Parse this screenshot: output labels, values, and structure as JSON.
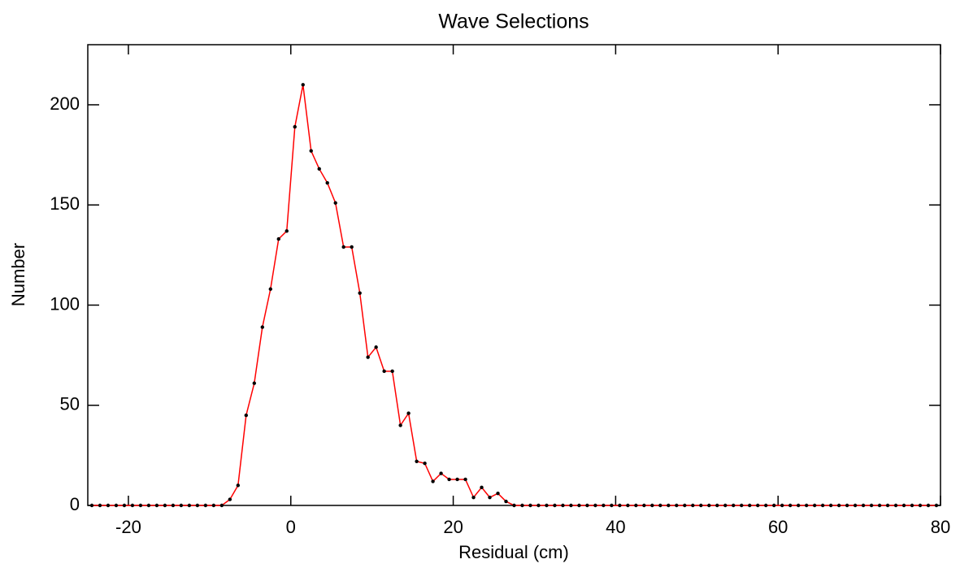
{
  "chart_data": {
    "type": "line",
    "title": "Wave Selections",
    "x_label": "Residual (cm)",
    "y_label": "Number",
    "x": [
      -24.5,
      -23.5,
      -22.5,
      -21.5,
      -20.5,
      -19.5,
      -18.5,
      -17.5,
      -16.5,
      -15.5,
      -14.5,
      -13.5,
      -12.5,
      -11.5,
      -10.5,
      -9.5,
      -8.5,
      -7.5,
      -6.5,
      -5.5,
      -4.5,
      -3.5,
      -2.5,
      -1.5,
      -0.5,
      0.5,
      1.5,
      2.5,
      3.5,
      4.5,
      5.5,
      6.5,
      7.5,
      8.5,
      9.5,
      10.5,
      11.5,
      12.5,
      13.5,
      14.5,
      15.5,
      16.5,
      17.5,
      18.5,
      19.5,
      20.5,
      21.5,
      22.5,
      23.5,
      24.5,
      25.5,
      26.5,
      27.5,
      28.5,
      29.5,
      30.5,
      31.5,
      32.5,
      33.5,
      34.5,
      35.5,
      36.5,
      37.5,
      38.5,
      39.5,
      40.5,
      41.5,
      42.5,
      43.5,
      44.5,
      45.5,
      46.5,
      47.5,
      48.5,
      49.5,
      50.5,
      51.5,
      52.5,
      53.5,
      54.5,
      55.5,
      56.5,
      57.5,
      58.5,
      59.5,
      60.5,
      61.5,
      62.5,
      63.5,
      64.5,
      65.5,
      66.5,
      67.5,
      68.5,
      69.5,
      70.5,
      71.5,
      72.5,
      73.5,
      74.5,
      75.5,
      76.5,
      77.5,
      78.5,
      79.5
    ],
    "series": [
      {
        "color": "#ff0000",
        "marker_color": "#000000",
        "values": [
          0,
          0,
          0,
          0,
          0,
          0,
          0,
          0,
          0,
          0,
          0,
          0,
          0,
          0,
          0,
          0,
          0,
          3,
          10,
          45,
          61,
          89,
          108,
          133,
          137,
          189,
          210,
          177,
          168,
          161,
          151,
          129,
          129,
          106,
          74,
          79,
          67,
          67,
          40,
          46,
          22,
          21,
          12,
          16,
          13,
          13,
          13,
          4,
          9,
          4,
          6,
          2,
          0,
          0,
          0,
          0,
          0,
          0,
          0,
          0,
          0,
          0,
          0,
          0,
          0,
          0,
          0,
          0,
          0,
          0,
          0,
          0,
          0,
          0,
          0,
          0,
          0,
          0,
          0,
          0,
          0,
          0,
          0,
          0,
          0,
          0,
          0,
          0,
          0,
          0,
          0,
          0,
          0,
          0,
          0,
          0,
          0,
          0,
          0,
          0,
          0,
          0,
          0,
          0,
          0
        ]
      }
    ],
    "xlim": [
      -25,
      80
    ],
    "xticks": [
      -20,
      0,
      20,
      40,
      60,
      80
    ],
    "ylim": [
      0,
      230
    ],
    "yticks": [
      0,
      50,
      100,
      150,
      200
    ],
    "grid": false
  }
}
